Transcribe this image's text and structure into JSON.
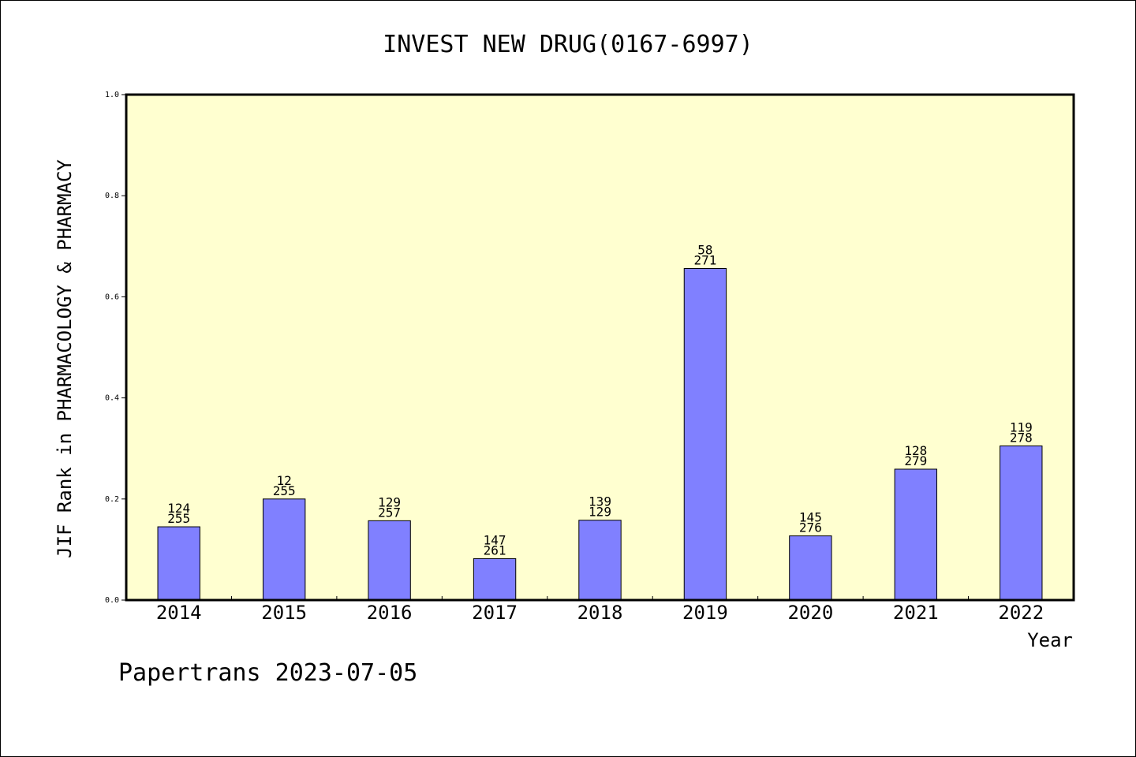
{
  "chart_data": {
    "type": "bar",
    "title": "INVEST NEW DRUG(0167-6997)",
    "xlabel": "Year",
    "ylabel": "JIF Rank in PHARMACOLOGY & PHARMACY",
    "ylim": [
      0,
      1.0
    ],
    "yticks": [
      "0.0",
      "0.2",
      "0.4",
      "0.6",
      "0.8",
      "1.0"
    ],
    "categories": [
      "2014",
      "2015",
      "2016",
      "2017",
      "2018",
      "2019",
      "2020",
      "2021",
      "2022"
    ],
    "values": [
      0.145,
      0.2,
      0.157,
      0.082,
      0.158,
      0.656,
      0.127,
      0.259,
      0.305
    ],
    "bar_labels": [
      {
        "rank": "124",
        "total": "255"
      },
      {
        "rank": "12",
        "total": "255"
      },
      {
        "rank": "129",
        "total": "257"
      },
      {
        "rank": "147",
        "total": "261"
      },
      {
        "rank": "139",
        "total": "129"
      },
      {
        "rank": "58",
        "total": "271"
      },
      {
        "rank": "145",
        "total": "276"
      },
      {
        "rank": "128",
        "total": "279"
      },
      {
        "rank": "119",
        "total": "278"
      }
    ],
    "grid": false,
    "colors": {
      "plot_background": "#ffffd0",
      "bar": "#8080ff",
      "axis": "#000000"
    }
  },
  "footer": "Papertrans 2023-07-05"
}
